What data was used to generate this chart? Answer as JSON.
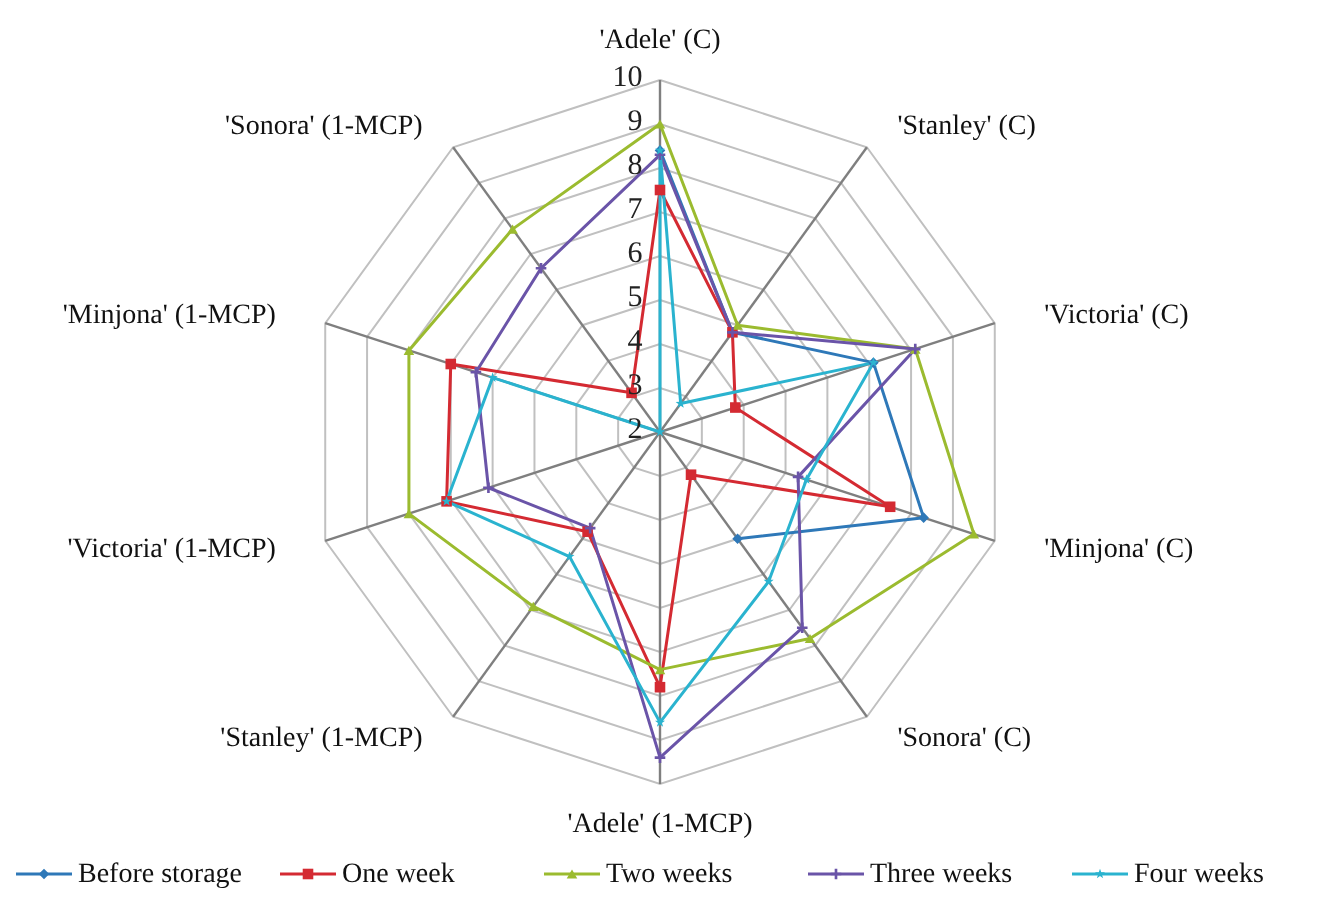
{
  "chart_data": {
    "type": "radar",
    "categories": [
      "'Adele' (C)",
      "'Stanley' (C)",
      "'Victoria' (C)",
      "'Minjona' (C)",
      "'Sonora'  (C)",
      "'Adele' (1-MCP)",
      "'Stanley' (1-MCP)",
      "'Victoria' (1-MCP)",
      "'Minjona'  (1-MCP)",
      "'Sonora' (1-MCP)"
    ],
    "series": [
      {
        "name": "Before storage",
        "color": "#2e78b8",
        "marker": "diamond",
        "values": [
          8.4,
          4.8,
          7.1,
          8.3,
          5.0,
          null,
          null,
          null,
          null,
          null
        ]
      },
      {
        "name": "One week",
        "color": "#d42a32",
        "marker": "square",
        "values": [
          7.5,
          4.8,
          3.8,
          7.5,
          3.2,
          7.8,
          4.8,
          7.1,
          7.0,
          3.1
        ]
      },
      {
        "name": "Two weeks",
        "color": "#9bbb2f",
        "marker": "triangle",
        "values": [
          9.0,
          5.0,
          8.1,
          9.5,
          7.8,
          7.4,
          6.9,
          8.0,
          8.0,
          7.7
        ]
      },
      {
        "name": "Three weeks",
        "color": "#6a54a8",
        "marker": "cross",
        "values": [
          8.3,
          4.8,
          8.1,
          5.3,
          7.5,
          9.4,
          4.7,
          6.1,
          6.4,
          6.6
        ]
      },
      {
        "name": "Four weeks",
        "color": "#2ab3cf",
        "marker": "star",
        "values": [
          8.4,
          2.8,
          7.1,
          5.5,
          6.2,
          8.6,
          5.5,
          7.1,
          6.0,
          2
        ]
      }
    ],
    "ylim": [
      2,
      10
    ],
    "yticks": [
      2,
      3,
      4,
      5,
      6,
      7,
      8,
      9,
      10
    ],
    "grid": true,
    "legend": "bottom",
    "line_style": "solid"
  }
}
